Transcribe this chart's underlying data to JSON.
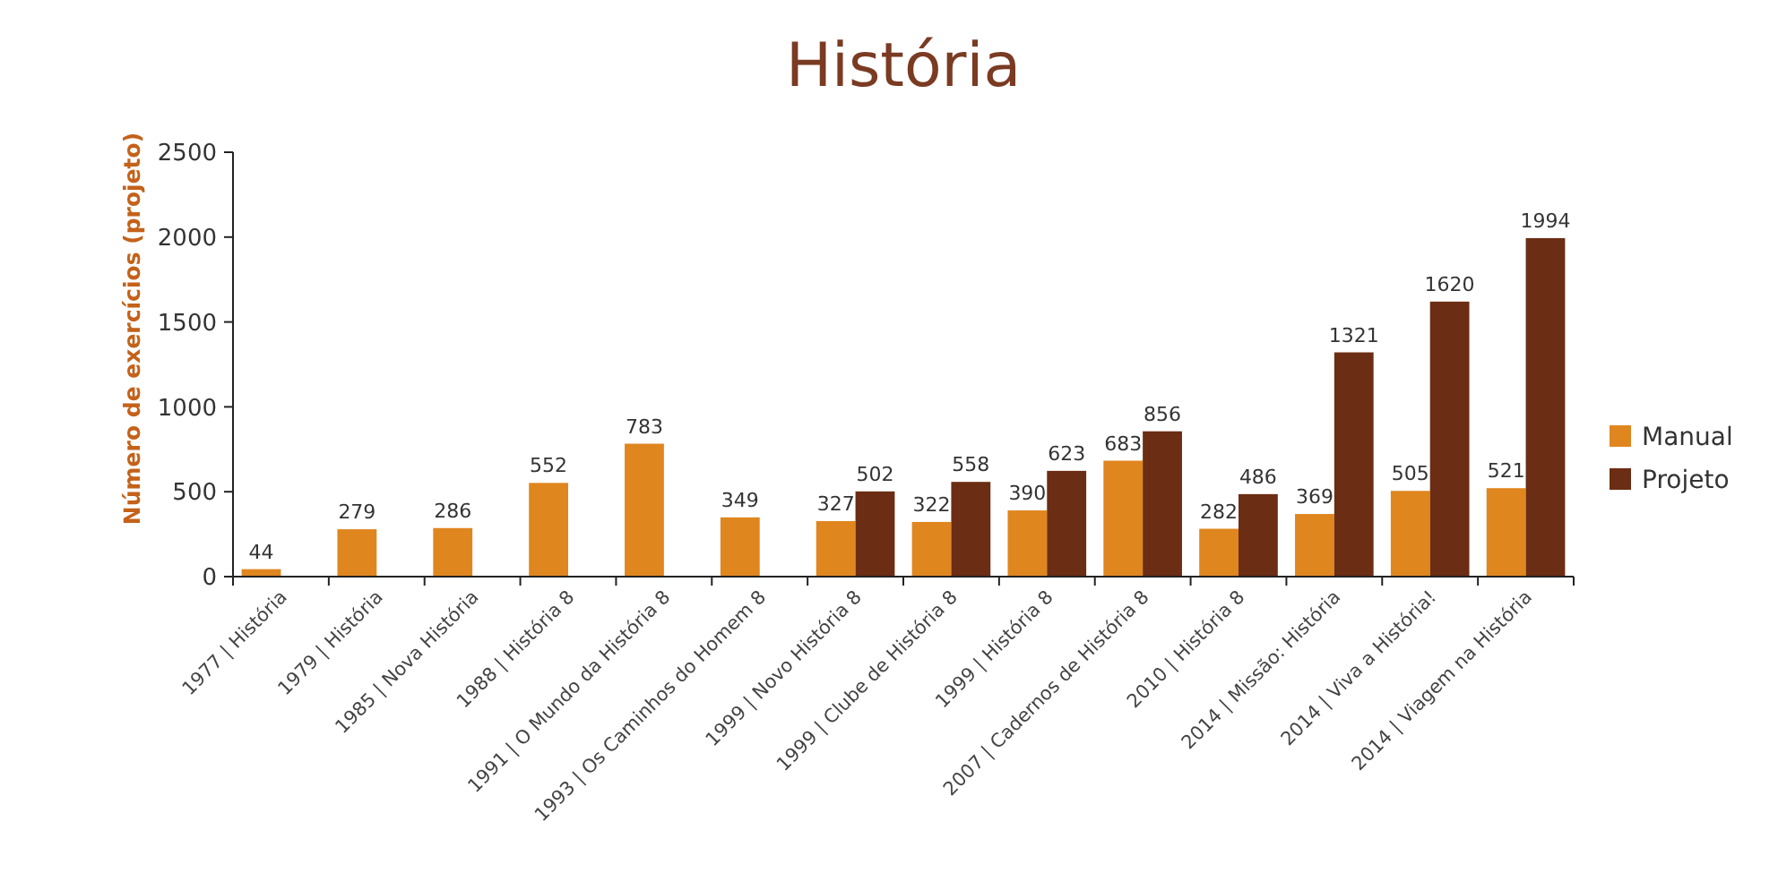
{
  "chart_data": {
    "type": "bar",
    "title": "História",
    "ylabel": "Número de exercícios (projeto)",
    "categories": [
      "1977 | História",
      "1979 | História",
      "1985 | Nova História",
      "1988 | História 8",
      "1991 | O Mundo da História 8",
      "1993 | Os Caminhos do Homem 8",
      "1999 | Novo História 8",
      "1999 | Clube de História 8",
      "1999 | História 8",
      "2007 | Cadernos de História 8",
      "2010 | História 8",
      "2014 | Missão: História",
      "2014 | Viva a História!",
      "2014 | Viagem na História"
    ],
    "series": [
      {
        "name": "Manual",
        "color": "#e0861f",
        "values": [
          44,
          279,
          286,
          552,
          783,
          349,
          327,
          322,
          390,
          683,
          282,
          369,
          505,
          521
        ]
      },
      {
        "name": "Projeto",
        "color": "#6b2d13",
        "values": [
          null,
          null,
          null,
          null,
          null,
          null,
          502,
          558,
          623,
          856,
          486,
          1321,
          1620,
          1994
        ]
      }
    ],
    "ylim": [
      0,
      2500
    ],
    "yticks": [
      0,
      500,
      1000,
      1500,
      2000,
      2500
    ],
    "data_labels": true,
    "legend": "right",
    "grid": false
  }
}
